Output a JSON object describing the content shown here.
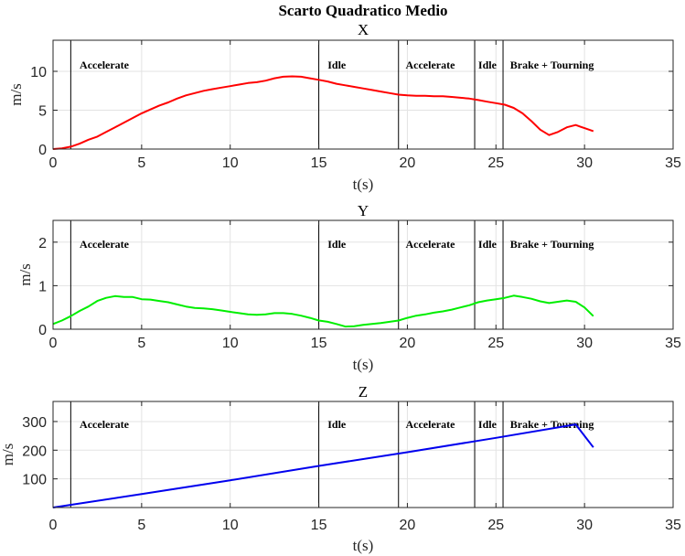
{
  "figure_title": "Scarto Quadratico Medio",
  "colors": {
    "x": "#ff0000",
    "y": "#00ee00",
    "z": "#0000ee",
    "grid": "#e3e3e3",
    "axis": "#262626",
    "phase_line": "#000000"
  },
  "phases": {
    "boundaries": [
      1.0,
      15.0,
      19.5,
      23.8,
      25.4
    ],
    "labels": [
      {
        "text": "Accelerate",
        "x": 1.5
      },
      {
        "text": "Idle",
        "x": 15.5
      },
      {
        "text": "Accelerate",
        "x": 19.9
      },
      {
        "text": "Idle",
        "x": 24.0
      },
      {
        "text": "Brake + Tourning",
        "x": 25.8
      }
    ]
  },
  "chart_data": [
    {
      "type": "line",
      "title": "X",
      "xlabel": "t(s)",
      "ylabel": "m/s",
      "xlim": [
        0,
        35
      ],
      "ylim": [
        0,
        14
      ],
      "xticks": [
        0,
        5,
        10,
        15,
        20,
        25,
        30,
        35
      ],
      "yticks": [
        0,
        5,
        10
      ],
      "grid": true,
      "series": [
        {
          "color": "#ff0000",
          "x": [
            0,
            0.5,
            1,
            1.5,
            2,
            2.5,
            3,
            3.5,
            4,
            4.5,
            5,
            5.5,
            6,
            6.5,
            7,
            7.5,
            8,
            8.5,
            9,
            9.5,
            10,
            10.5,
            11,
            11.5,
            12,
            12.5,
            13,
            13.5,
            14,
            14.5,
            15,
            15.5,
            16,
            16.5,
            17,
            17.5,
            18,
            18.5,
            19,
            19.5,
            20,
            20.5,
            21,
            21.5,
            22,
            22.5,
            23,
            23.5,
            24,
            24.5,
            25,
            25.5,
            26,
            26.5,
            27,
            27.5,
            28,
            28.5,
            29,
            29.5,
            30,
            30.5
          ],
          "y": [
            0,
            0.1,
            0.3,
            0.7,
            1.2,
            1.6,
            2.2,
            2.8,
            3.4,
            4.0,
            4.6,
            5.1,
            5.6,
            6.0,
            6.5,
            6.9,
            7.2,
            7.5,
            7.7,
            7.9,
            8.1,
            8.3,
            8.5,
            8.6,
            8.8,
            9.1,
            9.3,
            9.35,
            9.3,
            9.1,
            8.9,
            8.7,
            8.4,
            8.2,
            8.0,
            7.8,
            7.6,
            7.4,
            7.2,
            7.0,
            6.9,
            6.85,
            6.85,
            6.8,
            6.8,
            6.7,
            6.6,
            6.5,
            6.3,
            6.1,
            5.9,
            5.7,
            5.3,
            4.6,
            3.6,
            2.5,
            1.8,
            2.2,
            2.8,
            3.1,
            2.7,
            2.3
          ]
        }
      ]
    },
    {
      "type": "line",
      "title": "Y",
      "xlabel": "t(s)",
      "ylabel": "m/s",
      "xlim": [
        0,
        35
      ],
      "ylim": [
        0,
        2.5
      ],
      "xticks": [
        0,
        5,
        10,
        15,
        20,
        25,
        30,
        35
      ],
      "yticks": [
        0,
        1,
        2
      ],
      "grid": true,
      "series": [
        {
          "color": "#00ee00",
          "x": [
            0,
            0.5,
            1,
            1.5,
            2,
            2.5,
            3,
            3.5,
            4,
            4.5,
            5,
            5.5,
            6,
            6.5,
            7,
            7.5,
            8,
            8.5,
            9,
            9.5,
            10,
            10.5,
            11,
            11.5,
            12,
            12.5,
            13,
            13.5,
            14,
            14.5,
            15,
            15.5,
            16,
            16.5,
            17,
            17.5,
            18,
            18.5,
            19,
            19.5,
            20,
            20.5,
            21,
            21.5,
            22,
            22.5,
            23,
            23.5,
            24,
            24.5,
            25,
            25.5,
            26,
            26.5,
            27,
            27.5,
            28,
            28.5,
            29,
            29.5,
            30,
            30.5
          ],
          "y": [
            0.12,
            0.2,
            0.3,
            0.42,
            0.52,
            0.65,
            0.72,
            0.76,
            0.74,
            0.74,
            0.69,
            0.68,
            0.65,
            0.62,
            0.57,
            0.52,
            0.49,
            0.48,
            0.46,
            0.43,
            0.4,
            0.37,
            0.34,
            0.33,
            0.34,
            0.37,
            0.37,
            0.35,
            0.31,
            0.26,
            0.2,
            0.17,
            0.12,
            0.06,
            0.07,
            0.1,
            0.12,
            0.14,
            0.17,
            0.2,
            0.26,
            0.31,
            0.34,
            0.38,
            0.41,
            0.45,
            0.5,
            0.55,
            0.62,
            0.66,
            0.69,
            0.72,
            0.77,
            0.74,
            0.7,
            0.64,
            0.6,
            0.63,
            0.66,
            0.63,
            0.5,
            0.3
          ]
        }
      ]
    },
    {
      "type": "line",
      "title": "Z",
      "xlabel": "t(s)",
      "ylabel": "m/s",
      "xlim": [
        0,
        35
      ],
      "ylim": [
        0,
        370
      ],
      "xticks": [
        0,
        5,
        10,
        15,
        20,
        25,
        30,
        35
      ],
      "yticks": [
        100,
        200,
        300
      ],
      "grid": true,
      "series": [
        {
          "color": "#0000ee",
          "x": [
            0,
            5,
            10,
            15,
            20,
            25,
            29.5,
            30,
            30.5
          ],
          "y": [
            0,
            47,
            95,
            145,
            193,
            243,
            290,
            250,
            210
          ]
        }
      ]
    }
  ]
}
